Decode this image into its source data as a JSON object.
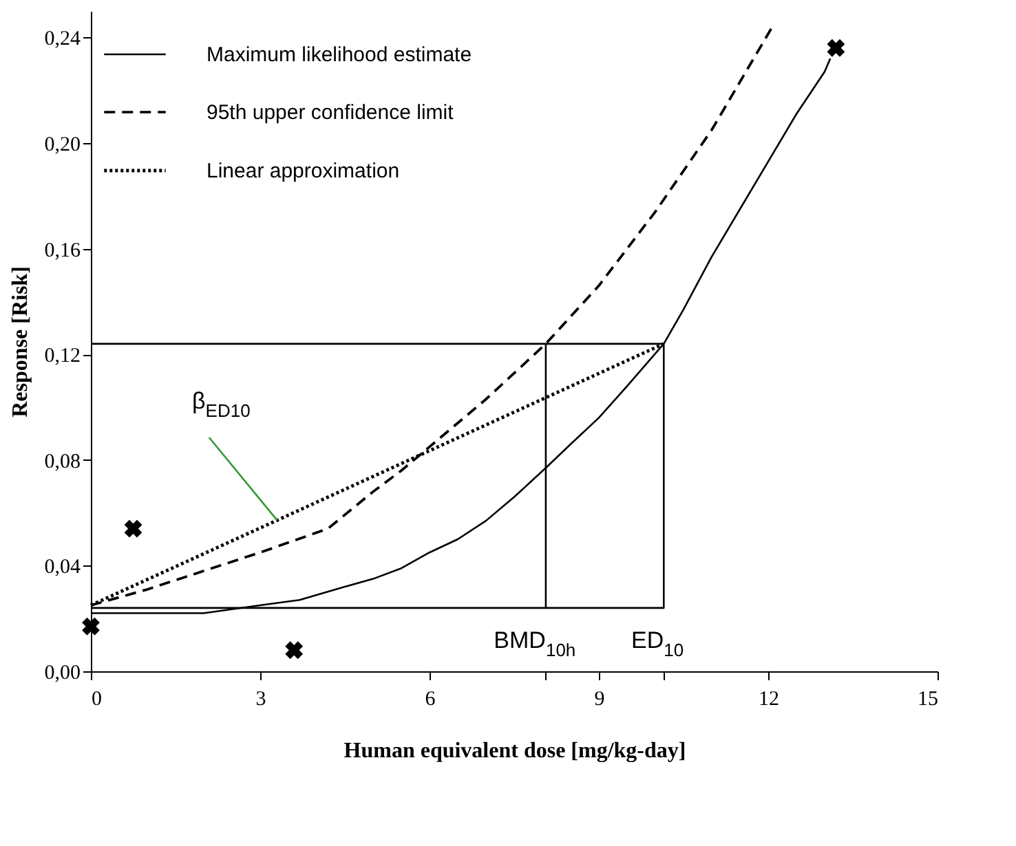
{
  "chart_data": {
    "type": "line",
    "xlabel": "Human equivalent dose [mg/kg-day]",
    "ylabel": "Response [Risk]",
    "xlim": [
      0,
      15
    ],
    "ylim": [
      0,
      0.25
    ],
    "xticks": [
      0,
      3,
      6,
      {
        "value": 8.06,
        "label": null
      },
      9,
      {
        "value": 10.15,
        "label": null
      },
      12,
      15
    ],
    "yticks": [
      {
        "value": 0,
        "label": "0,00"
      },
      {
        "value": 0.04,
        "label": "0,04"
      },
      {
        "value": 0.08,
        "label": "0,08"
      },
      {
        "value": 0.12,
        "label": "0,12"
      },
      {
        "value": 0.16,
        "label": "0,16"
      },
      {
        "value": 0.2,
        "label": "0,20"
      },
      {
        "value": 0.24,
        "label": "0,24"
      }
    ],
    "grid": false,
    "legend": "top left",
    "series": [
      {
        "name": "Maximum likelihood estimate",
        "line_style": "solid",
        "color": "#000000",
        "x": [
          0,
          1,
          2,
          3,
          3.7,
          4.5,
          5,
          5.5,
          6,
          6.5,
          7,
          7.5,
          8.06,
          8.5,
          9,
          9.5,
          10.15,
          10.5,
          11,
          11.5,
          12,
          12.5,
          13,
          13.1
        ],
        "values": [
          0.022,
          0.022,
          0.022,
          0.025,
          0.027,
          0.032,
          0.035,
          0.039,
          0.045,
          0.05,
          0.057,
          0.066,
          0.077,
          0.086,
          0.096,
          0.108,
          0.124,
          0.137,
          0.157,
          0.175,
          0.193,
          0.211,
          0.227,
          0.232
        ]
      },
      {
        "name": "95th upper confidence limit",
        "line_style": "dashed",
        "color": "#000000",
        "x": [
          0,
          1,
          2,
          3,
          4.2,
          5,
          5.5,
          6,
          7,
          8.06,
          9,
          10,
          11,
          12.1
        ],
        "values": [
          0.025,
          0.031,
          0.038,
          0.045,
          0.054,
          0.068,
          0.076,
          0.085,
          0.103,
          0.124,
          0.146,
          0.174,
          0.205,
          0.245
        ]
      },
      {
        "name": "Linear approximation",
        "line_style": "dotted",
        "color": "#000000",
        "x": [
          0,
          10.15
        ],
        "values": [
          0.025,
          0.124
        ]
      },
      {
        "line_style": "solid",
        "color": "#000000",
        "x": [
          0,
          10.15,
          10.15,
          0
        ],
        "values": [
          0.124,
          0.124,
          0.024,
          0.024
        ]
      },
      {
        "line_style": "solid",
        "color": "#000000",
        "x": [
          8.06,
          8.06
        ],
        "values": [
          0.024,
          0.124
        ]
      },
      {
        "type": "scatter",
        "marker": "cross",
        "color": "#000000",
        "x": [
          0,
          0.75,
          3.6,
          13.2
        ],
        "values": [
          0.017,
          0.054,
          0.008,
          0.236
        ]
      }
    ],
    "annotations": [
      {
        "text": "β$_{ED10}$",
        "x": 3.3,
        "y": 0.0572
      },
      {
        "text": "BMD$_{10h}$",
        "x": 8.06,
        "y": 0.024
      },
      {
        "text": "ED$_{10}$",
        "x": 10.15,
        "y": 0.024
      }
    ]
  }
}
